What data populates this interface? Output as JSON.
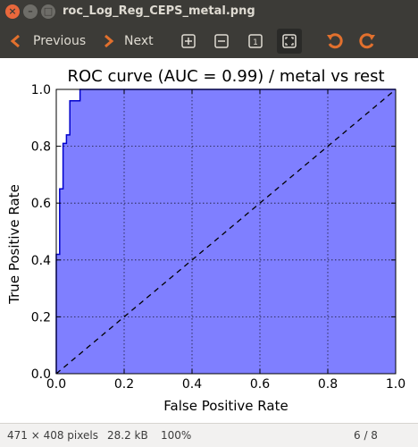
{
  "window": {
    "title": "roc_Log_Reg_CEPS_metal.png"
  },
  "toolbar": {
    "previous_label": "Previous",
    "next_label": "Next"
  },
  "chart_data": {
    "type": "area",
    "title": "ROC curve (AUC = 0.99) / metal vs rest",
    "xlabel": "False Positive Rate",
    "ylabel": "True Positive Rate",
    "xlim": [
      0.0,
      1.0
    ],
    "ylim": [
      0.0,
      1.0
    ],
    "xticks": [
      "0.0",
      "0.2",
      "0.4",
      "0.6",
      "0.8",
      "1.0"
    ],
    "yticks": [
      "0.0",
      "0.2",
      "0.4",
      "0.6",
      "0.8",
      "1.0"
    ],
    "grid": true,
    "fill_color": "#7f7fff",
    "line_color": "#0000cc",
    "series": [
      {
        "x": [
          0.0,
          0.0,
          0.01,
          0.01,
          0.02,
          0.02,
          0.03,
          0.03,
          0.04,
          0.04,
          0.07,
          0.07,
          0.12,
          0.12,
          1.0
        ],
        "y": [
          0.0,
          0.42,
          0.42,
          0.65,
          0.65,
          0.81,
          0.81,
          0.84,
          0.84,
          0.96,
          0.96,
          1.0,
          1.0,
          1.0,
          1.0
        ]
      }
    ],
    "reference_line": {
      "x": [
        0.0,
        1.0
      ],
      "y": [
        0.0,
        1.0
      ],
      "style": "dashed"
    }
  },
  "status": {
    "dimensions": "471 × 408 pixels",
    "size": "28.2 kB",
    "zoom": "100%",
    "position": "6 / 8"
  }
}
